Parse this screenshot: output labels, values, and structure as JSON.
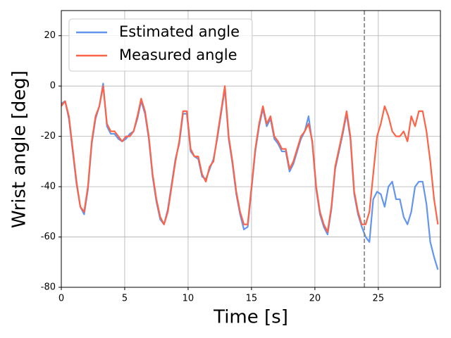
{
  "chart_data": {
    "type": "line",
    "xlabel": "Time [s]",
    "ylabel": "Wrist angle [deg]",
    "x": [
      0,
      0.3,
      0.6,
      0.9,
      1.2,
      1.5,
      1.8,
      2.1,
      2.4,
      2.7,
      3,
      3.3,
      3.6,
      3.9,
      4.2,
      4.5,
      4.8,
      5.1,
      5.4,
      5.7,
      6,
      6.3,
      6.6,
      6.9,
      7.2,
      7.5,
      7.8,
      8.1,
      8.4,
      8.7,
      9,
      9.3,
      9.6,
      9.9,
      10.2,
      10.5,
      10.8,
      11.1,
      11.4,
      11.7,
      12,
      12.3,
      12.6,
      12.9,
      13.2,
      13.5,
      13.8,
      14.1,
      14.4,
      14.7,
      15,
      15.3,
      15.6,
      15.9,
      16.2,
      16.5,
      16.8,
      17.1,
      17.4,
      17.7,
      18,
      18.3,
      18.6,
      18.9,
      19.2,
      19.5,
      19.8,
      20.1,
      20.4,
      20.7,
      21,
      21.3,
      21.6,
      21.9,
      22.2,
      22.5,
      22.8,
      23.1,
      23.4,
      23.7,
      24,
      24.3,
      24.6,
      24.9,
      25.2,
      25.5,
      25.8,
      26.1,
      26.4,
      26.7,
      27,
      27.3,
      27.6,
      27.9,
      28.2,
      28.5,
      28.8,
      29.1,
      29.4,
      29.7
    ],
    "series": [
      {
        "name": "Estimated angle",
        "color": "#6495ed",
        "values": [
          -7,
          -6,
          -13,
          -26,
          -39,
          -48,
          -51,
          -41,
          -23,
          -13,
          -8,
          1,
          -16,
          -19,
          -19,
          -21,
          -22,
          -21,
          -19,
          -18,
          -13,
          -6,
          -11,
          -21,
          -36,
          -46,
          -53,
          -55,
          -49,
          -39,
          -29,
          -23,
          -11,
          -11,
          -26,
          -28,
          -29,
          -36,
          -37,
          -33,
          -29,
          -21,
          -11,
          -1,
          -21,
          -31,
          -43,
          -51,
          -57,
          -56,
          -41,
          -26,
          -16,
          -9,
          -16,
          -13,
          -21,
          -23,
          -26,
          -26,
          -34,
          -31,
          -26,
          -21,
          -18,
          -12,
          -23,
          -41,
          -51,
          -56,
          -59,
          -49,
          -33,
          -26,
          -19,
          -11,
          -21,
          -43,
          -51,
          -56,
          -60,
          -62,
          -45,
          -42,
          -43,
          -48,
          -40,
          -38,
          -45,
          -45,
          -52,
          -55,
          -50,
          -40,
          -38,
          -38,
          -47,
          -62,
          -68,
          -73
        ]
      },
      {
        "name": "Measured angle",
        "color": "#ff6347",
        "values": [
          -8,
          -6,
          -12,
          -25,
          -38,
          -48,
          -50,
          -40,
          -22,
          -12,
          -8,
          0,
          -15,
          -18,
          -18,
          -20,
          -22,
          -20,
          -20,
          -18,
          -12,
          -5,
          -10,
          -20,
          -35,
          -45,
          -52,
          -55,
          -50,
          -40,
          -30,
          -22,
          -10,
          -10,
          -25,
          -28,
          -28,
          -35,
          -38,
          -32,
          -30,
          -20,
          -10,
          0,
          -20,
          -30,
          -42,
          -50,
          -55,
          -55,
          -40,
          -25,
          -15,
          -8,
          -15,
          -12,
          -20,
          -22,
          -25,
          -25,
          -33,
          -30,
          -25,
          -20,
          -18,
          -15,
          -22,
          -40,
          -50,
          -55,
          -58,
          -48,
          -32,
          -25,
          -18,
          -10,
          -20,
          -42,
          -50,
          -55,
          -55,
          -50,
          -35,
          -20,
          -15,
          -8,
          -12,
          -18,
          -20,
          -20,
          -18,
          -22,
          -12,
          -16,
          -10,
          -10,
          -18,
          -30,
          -45,
          -55
        ]
      }
    ],
    "vline": {
      "x": 23.9,
      "color": "#808080"
    },
    "xlim": [
      0,
      29.9
    ],
    "ylim": [
      -80,
      30
    ],
    "xticks": [
      0,
      5,
      10,
      15,
      20,
      25
    ],
    "yticks": [
      -80,
      -60,
      -40,
      -20,
      0,
      20
    ],
    "grid": true,
    "legend": "upper left"
  }
}
